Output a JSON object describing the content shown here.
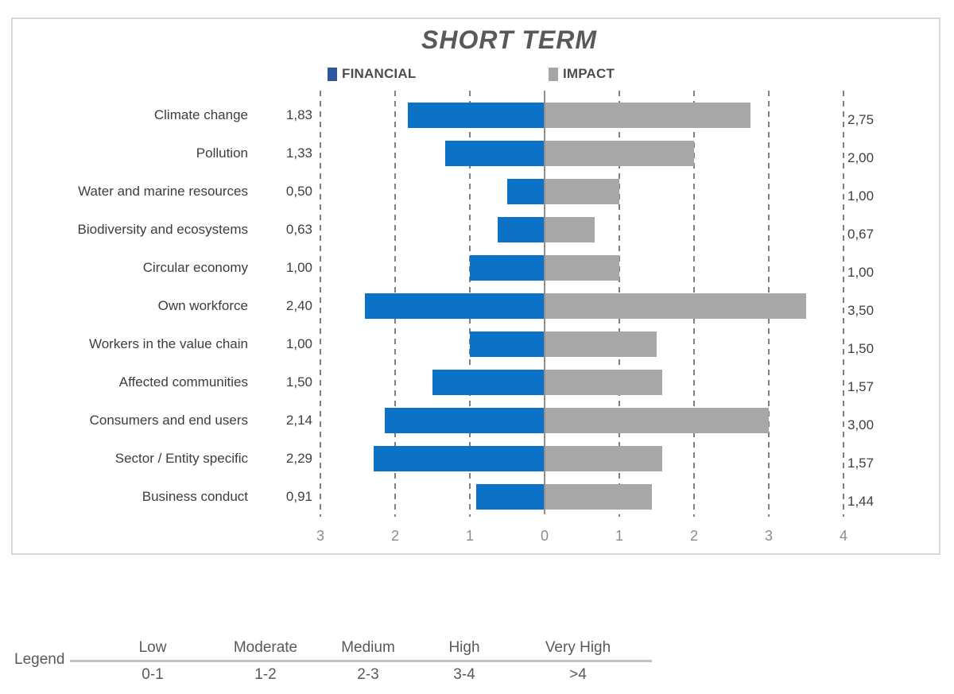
{
  "chart_data": {
    "type": "bar",
    "variant": "diverging-horizontal-tornado",
    "title": "SHORT TERM",
    "categories": [
      "Climate change",
      "Pollution",
      "Water and marine resources",
      "Biodiversity and ecosystems",
      "Circular economy",
      "Own workforce",
      "Workers in the value chain",
      "Affected communities",
      "Consumers and end users",
      "Sector / Entity specific",
      "Business conduct"
    ],
    "series": [
      {
        "name": "FINANCIAL",
        "direction": "left",
        "bar_color": "#0b72c5",
        "legend_color": "#2e55a0",
        "values": [
          1.83,
          1.33,
          0.5,
          0.63,
          1.0,
          2.4,
          1.0,
          1.5,
          2.14,
          2.29,
          0.91
        ],
        "value_labels": [
          "1,83",
          "1,33",
          "0,50",
          "0,63",
          "1,00",
          "2,40",
          "1,00",
          "1,50",
          "2,14",
          "2,29",
          "0,91"
        ]
      },
      {
        "name": "IMPACT",
        "direction": "right",
        "bar_color": "#a8a8a8",
        "legend_color": "#a6a6a6",
        "values": [
          2.75,
          2.0,
          1.0,
          0.67,
          1.0,
          3.5,
          1.5,
          1.57,
          3.0,
          1.57,
          1.44
        ],
        "value_labels": [
          "2,75",
          "2,00",
          "1,00",
          "0,67",
          "1,00",
          "3,50",
          "1,50",
          "1,57",
          "3,00",
          "1,57",
          "1,44"
        ]
      }
    ],
    "x_axis": {
      "ticks": [
        -3,
        -2,
        -1,
        0,
        1,
        2,
        3,
        4
      ],
      "tick_labels": [
        "3",
        "2",
        "1",
        "0",
        "1",
        "2",
        "3",
        "4"
      ],
      "min": -3.1,
      "max": 4.1,
      "gridlines": "dashed-vertical"
    },
    "legend_position": "top"
  },
  "legend_table": {
    "label": "Legend",
    "columns": [
      {
        "name": "Low",
        "range": "0-1"
      },
      {
        "name": "Moderate",
        "range": "1-2"
      },
      {
        "name": "Medium",
        "range": "2-3"
      },
      {
        "name": "High",
        "range": "3-4"
      },
      {
        "name": "Very High",
        "range": ">4"
      }
    ]
  }
}
